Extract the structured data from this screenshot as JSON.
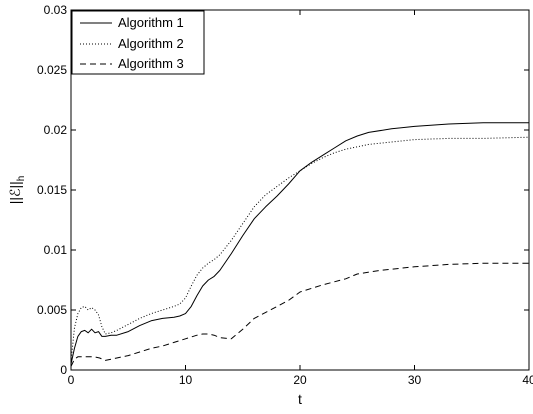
{
  "chart_data": {
    "type": "line",
    "xlabel": "t",
    "ylabel": "||ℰ||",
    "ylabel_subscript": "h",
    "xlim": [
      0,
      40
    ],
    "ylim": [
      0,
      0.03
    ],
    "xticks": [
      0,
      10,
      20,
      30,
      40
    ],
    "xtick_labels": [
      "0",
      "10",
      "20",
      "30",
      "40"
    ],
    "yticks": [
      0,
      0.005,
      0.01,
      0.015,
      0.02,
      0.025,
      0.03
    ],
    "ytick_labels": [
      "0",
      "0.005",
      "0.01",
      "0.015",
      "0.02",
      "0.025",
      "0.03"
    ],
    "grid": false,
    "legend_position": "top-left",
    "series": [
      {
        "name": "Algorithm 1",
        "style": "solid",
        "color": "#000000",
        "points": [
          [
            0,
            0.0005
          ],
          [
            0.3,
            0.0018
          ],
          [
            0.6,
            0.0028
          ],
          [
            0.9,
            0.0032
          ],
          [
            1.2,
            0.0033
          ],
          [
            1.5,
            0.0031
          ],
          [
            1.8,
            0.0034
          ],
          [
            2.1,
            0.0031
          ],
          [
            2.4,
            0.0032
          ],
          [
            2.7,
            0.0028
          ],
          [
            3.0,
            0.0028
          ],
          [
            3.5,
            0.0029
          ],
          [
            4.0,
            0.0029
          ],
          [
            5.0,
            0.0032
          ],
          [
            6.0,
            0.0037
          ],
          [
            7.0,
            0.0041
          ],
          [
            8.0,
            0.0043
          ],
          [
            9.0,
            0.0044
          ],
          [
            9.5,
            0.0045
          ],
          [
            10.0,
            0.0047
          ],
          [
            10.5,
            0.0053
          ],
          [
            11.0,
            0.0062
          ],
          [
            11.5,
            0.007
          ],
          [
            12.0,
            0.0075
          ],
          [
            12.5,
            0.0078
          ],
          [
            13.0,
            0.0083
          ],
          [
            13.5,
            0.009
          ],
          [
            14.0,
            0.0097
          ],
          [
            15.0,
            0.0112
          ],
          [
            16.0,
            0.0126
          ],
          [
            17.0,
            0.0136
          ],
          [
            18.0,
            0.0145
          ],
          [
            19.0,
            0.0155
          ],
          [
            20.0,
            0.0166
          ],
          [
            21.0,
            0.0173
          ],
          [
            22.0,
            0.0179
          ],
          [
            23.0,
            0.0185
          ],
          [
            24.0,
            0.0191
          ],
          [
            25.0,
            0.0195
          ],
          [
            26.0,
            0.0198
          ],
          [
            28.0,
            0.0201
          ],
          [
            30.0,
            0.0203
          ],
          [
            33.0,
            0.0205
          ],
          [
            36.0,
            0.0206
          ],
          [
            40.0,
            0.0206
          ]
        ]
      },
      {
        "name": "Algorithm 2",
        "style": "dotted",
        "color": "#000000",
        "points": [
          [
            0,
            0.0007
          ],
          [
            0.3,
            0.0035
          ],
          [
            0.6,
            0.0047
          ],
          [
            0.9,
            0.0052
          ],
          [
            1.2,
            0.0053
          ],
          [
            1.5,
            0.005
          ],
          [
            1.8,
            0.0052
          ],
          [
            2.1,
            0.005
          ],
          [
            2.4,
            0.0046
          ],
          [
            2.7,
            0.0036
          ],
          [
            3.0,
            0.003
          ],
          [
            3.5,
            0.0031
          ],
          [
            4.0,
            0.0033
          ],
          [
            5.0,
            0.0038
          ],
          [
            6.0,
            0.0043
          ],
          [
            7.0,
            0.0047
          ],
          [
            8.0,
            0.005
          ],
          [
            9.0,
            0.0053
          ],
          [
            9.5,
            0.0055
          ],
          [
            10.0,
            0.006
          ],
          [
            10.5,
            0.007
          ],
          [
            11.0,
            0.0079
          ],
          [
            11.5,
            0.0085
          ],
          [
            12.0,
            0.0089
          ],
          [
            12.5,
            0.0092
          ],
          [
            13.0,
            0.0096
          ],
          [
            14.0,
            0.0108
          ],
          [
            15.0,
            0.0122
          ],
          [
            16.0,
            0.0136
          ],
          [
            17.0,
            0.0146
          ],
          [
            18.0,
            0.0153
          ],
          [
            19.0,
            0.016
          ],
          [
            20.0,
            0.0166
          ],
          [
            21.0,
            0.0172
          ],
          [
            22.0,
            0.0177
          ],
          [
            23.0,
            0.0181
          ],
          [
            24.0,
            0.0184
          ],
          [
            26.0,
            0.0188
          ],
          [
            28.0,
            0.019
          ],
          [
            30.0,
            0.0192
          ],
          [
            33.0,
            0.0193
          ],
          [
            36.0,
            0.0193
          ],
          [
            40.0,
            0.0194
          ]
        ]
      },
      {
        "name": "Algorithm 3",
        "style": "dashed",
        "color": "#000000",
        "points": [
          [
            0,
            0.0003
          ],
          [
            0.3,
            0.0009
          ],
          [
            0.6,
            0.0011
          ],
          [
            1.0,
            0.0011
          ],
          [
            1.5,
            0.0011
          ],
          [
            2.0,
            0.0011
          ],
          [
            2.5,
            0.001
          ],
          [
            3.0,
            0.0008
          ],
          [
            3.5,
            0.0009
          ],
          [
            4.0,
            0.001
          ],
          [
            5.0,
            0.0012
          ],
          [
            6.0,
            0.0015
          ],
          [
            7.0,
            0.0018
          ],
          [
            8.0,
            0.002
          ],
          [
            9.0,
            0.0023
          ],
          [
            10.0,
            0.0026
          ],
          [
            11.0,
            0.0029
          ],
          [
            11.5,
            0.003
          ],
          [
            12.0,
            0.003
          ],
          [
            12.5,
            0.0029
          ],
          [
            13.0,
            0.0027
          ],
          [
            14.0,
            0.0026
          ],
          [
            15.0,
            0.0034
          ],
          [
            16.0,
            0.0043
          ],
          [
            17.0,
            0.0048
          ],
          [
            18.0,
            0.0053
          ],
          [
            19.0,
            0.0058
          ],
          [
            20.0,
            0.0065
          ],
          [
            22.0,
            0.0071
          ],
          [
            24.0,
            0.0076
          ],
          [
            25.0,
            0.008
          ],
          [
            27.0,
            0.0083
          ],
          [
            30.0,
            0.0086
          ],
          [
            33.0,
            0.0088
          ],
          [
            36.0,
            0.0089
          ],
          [
            40.0,
            0.0089
          ]
        ]
      }
    ]
  }
}
